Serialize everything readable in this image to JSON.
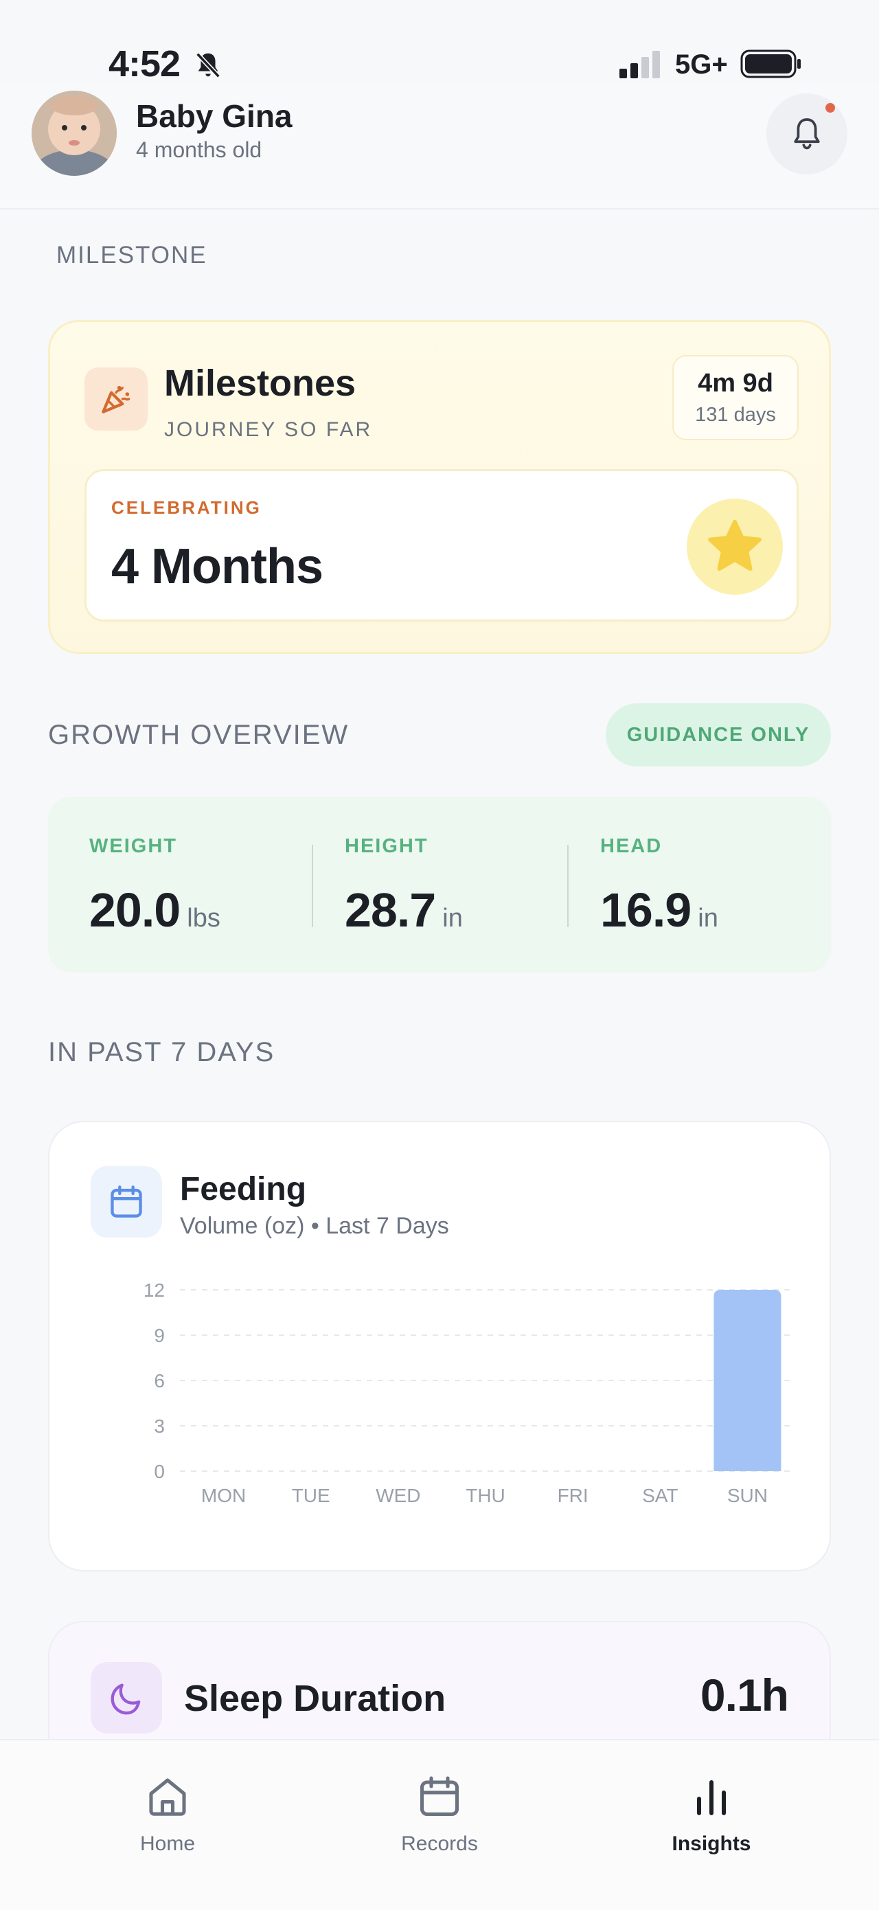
{
  "status_bar": {
    "time": "4:52",
    "network": "5G+"
  },
  "header": {
    "name": "Baby Gina",
    "age": "4 months old"
  },
  "milestone_section": {
    "label": "MILESTONE",
    "title": "Milestones",
    "subtitle": "JOURNEY SO FAR",
    "age_short": "4m 9d",
    "age_days": "131 days",
    "celebrating_label": "CELEBRATING",
    "celebrating_value": "4 Months"
  },
  "growth": {
    "label": "GROWTH OVERVIEW",
    "badge": "GUIDANCE ONLY",
    "metrics": [
      {
        "label": "WEIGHT",
        "value": "20.0",
        "unit": "lbs"
      },
      {
        "label": "HEIGHT",
        "value": "28.7",
        "unit": "in"
      },
      {
        "label": "HEAD",
        "value": "16.9",
        "unit": "in"
      }
    ]
  },
  "week_label": "IN PAST 7 DAYS",
  "feeding": {
    "title": "Feeding",
    "subtitle": "Volume (oz) • Last 7 Days"
  },
  "chart_data": {
    "type": "bar",
    "categories": [
      "MON",
      "TUE",
      "WED",
      "THU",
      "FRI",
      "SAT",
      "SUN"
    ],
    "values": [
      0,
      0,
      0,
      0,
      0,
      0,
      12
    ],
    "yticks": [
      0,
      3,
      6,
      9,
      12
    ],
    "ylim": [
      0,
      12
    ],
    "bar_color": "#a3c3f7",
    "grid": "dashed horizontal",
    "title": "",
    "xlabel": "",
    "ylabel": ""
  },
  "sleep": {
    "title": "Sleep Duration",
    "value": "0.1h"
  },
  "nav": {
    "items": [
      {
        "label": "Home",
        "icon": "home-icon",
        "active": false
      },
      {
        "label": "Records",
        "icon": "calendar-icon",
        "active": false
      },
      {
        "label": "Insights",
        "icon": "bar-chart-icon",
        "active": true
      }
    ]
  },
  "colors": {
    "accent_orange": "#d26a2e",
    "accent_green": "#57b280",
    "star_yellow": "#f6cf45",
    "notification_dot": "#e2674a",
    "feeding_blue": "#5b8ee6",
    "sleep_purple": "#9a5bd6"
  }
}
